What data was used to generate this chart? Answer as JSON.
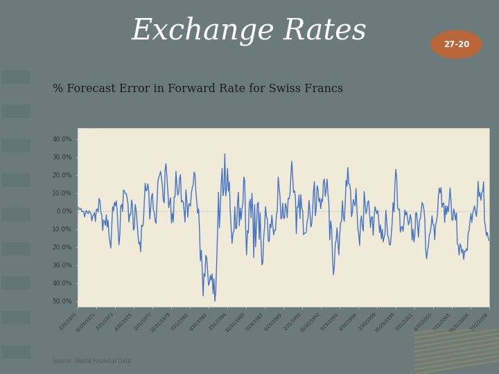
{
  "title": "Exchange Rates",
  "subtitle": "% Forecast Error in Forward Rate for Swiss Francs",
  "source": "Source: Global Financial Data",
  "slide_number": "27-20",
  "title_bg_color": "#3d4f4f",
  "title_text_color": "#ffffff",
  "chart_bg_color": "#f0ead8",
  "panel_bg_color": "#e8e2d0",
  "outer_bg_color": "#6b7b7b",
  "line_color": "#4472c4",
  "line_width": 1.0,
  "zero_line_color": "#bbbbbb",
  "ytick_labels": [
    "40.0%",
    "30.0%",
    "20.0%",
    "10.0%",
    "0.0%",
    "10.0%",
    "20.0%",
    "30.0%",
    "40.0%",
    "50.0%"
  ],
  "ytick_values": [
    40,
    30,
    20,
    10,
    0,
    -10,
    -20,
    -30,
    -40,
    -50
  ],
  "ylim": [
    -53,
    46
  ],
  "xtick_labels": [
    "1/31/1970",
    "10/29/1971",
    "7/31/1973",
    "4/30/1975",
    "1/31/1977",
    "10/31/1978",
    "7/31/1980",
    "4/30/1982",
    "1/31/1984",
    "10/31/1985",
    "7/28/1987",
    "4/29/1989",
    "1/31/1991",
    "10/30/1992",
    "7/29/1994",
    "4/30/1996",
    "1/30/1998",
    "10/29/1999",
    "7/31/2001",
    "4/30/2003",
    "1/31/2005",
    "10/31/2006",
    "7/31/2008"
  ],
  "badge_color": "#b8663a",
  "badge_text_color": "#ffffff",
  "stripe_color": "#5a6e6e"
}
